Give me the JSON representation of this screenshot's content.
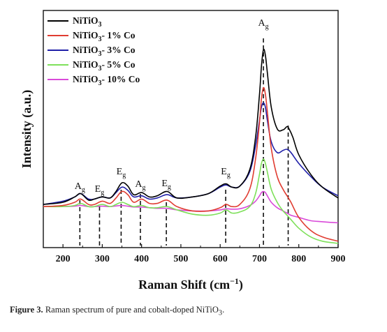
{
  "chart_data": {
    "type": "line",
    "xlabel": "Raman Shift (cm",
    "xlabel_sup": "−1",
    "xlabel_close": ")",
    "ylabel": "Intensity (a.u.)",
    "xlim": [
      150,
      900
    ],
    "ylim": [
      0,
      1
    ],
    "x_ticks": [
      200,
      300,
      400,
      500,
      600,
      700,
      800,
      900
    ],
    "grid": false,
    "legend_position": "top-left",
    "series": [
      {
        "name": "NiTiO",
        "sub": "3",
        "suffix": "",
        "color": "#000000",
        "x": [
          150,
          200,
          230,
          245,
          265,
          280,
          300,
          320,
          335,
          350,
          365,
          380,
          400,
          420,
          440,
          465,
          490,
          530,
          570,
          600,
          615,
          630,
          650,
          675,
          690,
          700,
          705,
          710,
          715,
          720,
          730,
          745,
          760,
          770,
          775,
          785,
          800,
          830,
          860,
          900
        ],
        "y": [
          0.19,
          0.2,
          0.225,
          0.24,
          0.21,
          0.215,
          0.225,
          0.22,
          0.25,
          0.29,
          0.275,
          0.235,
          0.245,
          0.225,
          0.23,
          0.25,
          0.22,
          0.225,
          0.24,
          0.275,
          0.285,
          0.27,
          0.275,
          0.35,
          0.5,
          0.7,
          0.83,
          0.905,
          0.88,
          0.8,
          0.64,
          0.54,
          0.535,
          0.55,
          0.54,
          0.5,
          0.42,
          0.33,
          0.27,
          0.22
        ]
      },
      {
        "name": "NiTiO",
        "sub": "3",
        "suffix": "- 1% Co",
        "color": "#e03c31",
        "x": [
          150,
          200,
          230,
          245,
          265,
          280,
          300,
          320,
          335,
          350,
          365,
          380,
          400,
          420,
          440,
          465,
          490,
          530,
          570,
          600,
          615,
          630,
          650,
          675,
          690,
          700,
          705,
          710,
          715,
          720,
          730,
          745,
          760,
          770,
          780,
          800,
          830,
          860,
          900
        ],
        "y": [
          0.18,
          0.185,
          0.2,
          0.215,
          0.19,
          0.19,
          0.205,
          0.195,
          0.22,
          0.25,
          0.235,
          0.2,
          0.215,
          0.195,
          0.195,
          0.21,
          0.18,
          0.16,
          0.16,
          0.175,
          0.19,
          0.18,
          0.19,
          0.26,
          0.4,
          0.57,
          0.68,
          0.73,
          0.7,
          0.62,
          0.45,
          0.32,
          0.26,
          0.23,
          0.2,
          0.13,
          0.07,
          0.04,
          0.02
        ]
      },
      {
        "name": "NiTiO",
        "sub": "3",
        "suffix": "- 3% Co",
        "color": "#1f1fa8",
        "x": [
          150,
          200,
          230,
          245,
          265,
          280,
          300,
          320,
          335,
          350,
          365,
          380,
          400,
          420,
          440,
          465,
          490,
          530,
          570,
          600,
          615,
          630,
          650,
          675,
          690,
          700,
          705,
          710,
          715,
          720,
          730,
          745,
          760,
          770,
          780,
          800,
          830,
          860,
          900
        ],
        "y": [
          0.19,
          0.205,
          0.225,
          0.24,
          0.215,
          0.215,
          0.225,
          0.22,
          0.245,
          0.27,
          0.255,
          0.225,
          0.23,
          0.215,
          0.22,
          0.235,
          0.22,
          0.225,
          0.24,
          0.27,
          0.28,
          0.27,
          0.275,
          0.34,
          0.46,
          0.58,
          0.64,
          0.66,
          0.64,
          0.58,
          0.48,
          0.43,
          0.44,
          0.445,
          0.43,
          0.38,
          0.32,
          0.27,
          0.23
        ]
      },
      {
        "name": "NiTiO",
        "sub": "3",
        "suffix": "- 5% Co",
        "color": "#7ee05a",
        "x": [
          150,
          200,
          230,
          245,
          265,
          280,
          300,
          320,
          335,
          350,
          365,
          380,
          400,
          420,
          440,
          465,
          490,
          530,
          570,
          600,
          615,
          630,
          650,
          675,
          690,
          700,
          705,
          710,
          715,
          720,
          730,
          745,
          760,
          770,
          780,
          800,
          830,
          860,
          900
        ],
        "y": [
          0.18,
          0.18,
          0.185,
          0.195,
          0.18,
          0.18,
          0.19,
          0.18,
          0.19,
          0.2,
          0.19,
          0.18,
          0.185,
          0.175,
          0.175,
          0.18,
          0.165,
          0.145,
          0.14,
          0.15,
          0.165,
          0.15,
          0.155,
          0.18,
          0.24,
          0.33,
          0.38,
          0.4,
          0.38,
          0.34,
          0.26,
          0.2,
          0.16,
          0.14,
          0.12,
          0.08,
          0.04,
          0.02,
          0.01
        ]
      },
      {
        "name": "NiTiO",
        "sub": "3",
        "suffix": "- 10% Co",
        "color": "#d94ad9",
        "x": [
          150,
          200,
          230,
          245,
          265,
          280,
          300,
          320,
          335,
          350,
          365,
          380,
          400,
          420,
          440,
          465,
          490,
          530,
          570,
          600,
          615,
          630,
          650,
          675,
          690,
          700,
          705,
          710,
          715,
          720,
          730,
          745,
          760,
          770,
          780,
          800,
          830,
          860,
          900
        ],
        "y": [
          0.18,
          0.18,
          0.182,
          0.185,
          0.18,
          0.18,
          0.182,
          0.18,
          0.183,
          0.185,
          0.182,
          0.178,
          0.178,
          0.175,
          0.172,
          0.172,
          0.165,
          0.16,
          0.16,
          0.165,
          0.17,
          0.168,
          0.17,
          0.185,
          0.205,
          0.23,
          0.245,
          0.25,
          0.245,
          0.23,
          0.2,
          0.175,
          0.16,
          0.15,
          0.14,
          0.13,
          0.115,
          0.11,
          0.105
        ]
      }
    ],
    "annotations": [
      {
        "main": "A",
        "sub": "g",
        "x": 243
      },
      {
        "main": "E",
        "sub": "g",
        "x": 293
      },
      {
        "main": "E",
        "sub": "g",
        "x": 348
      },
      {
        "main": "A",
        "sub": "g",
        "x": 397
      },
      {
        "main": "E",
        "sub": "g",
        "x": 463
      },
      {
        "main": "E",
        "sub": "g",
        "x": 614
      },
      {
        "main": "A",
        "sub": "g",
        "x": 710
      }
    ],
    "peak_markers": [
      243,
      293,
      348,
      397,
      463,
      614,
      710,
      773
    ]
  },
  "caption": {
    "label": "Figure 3.",
    "text_before": " Raman spectrum of pure and cobalt-doped NiTiO",
    "sub": "3",
    "text_after": "."
  }
}
